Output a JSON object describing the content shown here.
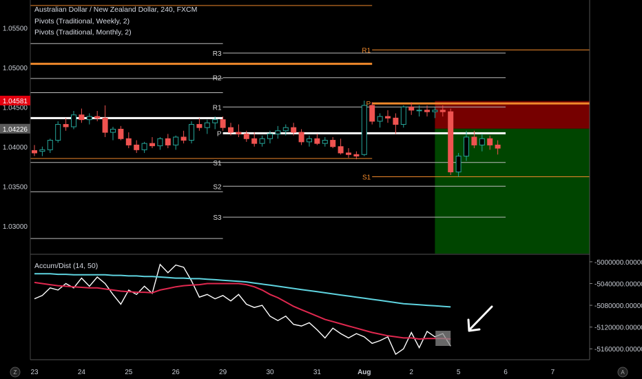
{
  "header": {
    "title": "Australian Dollar / New Zealand Dollar, 240, FXCM",
    "pivots_weekly": "Pivots (Traditional, Weekly, 2)",
    "pivots_monthly": "Pivots (Traditional, Monthly, 2)"
  },
  "indicator": {
    "title": "Accum/Dist (14, 50)"
  },
  "colors": {
    "background": "#000000",
    "up_candle": "#26a69a",
    "down_candle": "#ef5350",
    "pivot_weekly": "#ffffff",
    "pivot_monthly": "#f0892b",
    "ad_line": "#ffffff",
    "ma_fast": "#e0284f",
    "ma_slow": "#5fd4e0",
    "stop_zone": "#8b0000",
    "target_zone": "#004d00",
    "price_badge_red": "#e2000f",
    "price_badge_grey": "#5b5b5b"
  },
  "chart_data": [
    {
      "type": "candlestick",
      "title": "Australian Dollar / New Zealand Dollar, 240, FXCM",
      "y_axis": {
        "ticks": [
          "1.05500",
          "1.05000",
          "1.04500",
          "1.04000",
          "1.03500",
          "1.03000"
        ],
        "tick_values": [
          1.055,
          1.05,
          1.045,
          1.04,
          1.035,
          1.03
        ],
        "ylim": [
          1.0265,
          1.0585
        ],
        "badges": [
          {
            "label": "1.04581",
            "value": 1.04581,
            "color": "#e2000f"
          },
          {
            "label": "1.04226",
            "value": 1.04226,
            "color": "#5b5b5b"
          }
        ]
      },
      "x_axis": {
        "ticks": [
          "23",
          "24",
          "25",
          "26",
          "29",
          "30",
          "31",
          "Aug",
          "2",
          "5",
          "6",
          "7"
        ],
        "tick_positions": [
          0,
          6,
          12,
          18,
          24,
          30,
          36,
          42,
          48,
          54,
          60,
          66
        ]
      },
      "candles": [
        {
          "o": 1.0395,
          "h": 1.0402,
          "l": 1.0388,
          "c": 1.0392
        },
        {
          "o": 1.0394,
          "h": 1.04,
          "l": 1.0388,
          "c": 1.0396
        },
        {
          "o": 1.0396,
          "h": 1.041,
          "l": 1.0392,
          "c": 1.0408
        },
        {
          "o": 1.0408,
          "h": 1.0432,
          "l": 1.0405,
          "c": 1.0428
        },
        {
          "o": 1.0428,
          "h": 1.0436,
          "l": 1.042,
          "c": 1.0425
        },
        {
          "o": 1.0425,
          "h": 1.0445,
          "l": 1.0422,
          "c": 1.044
        },
        {
          "o": 1.044,
          "h": 1.0448,
          "l": 1.043,
          "c": 1.0434
        },
        {
          "o": 1.0434,
          "h": 1.0442,
          "l": 1.0428,
          "c": 1.0438
        },
        {
          "o": 1.0438,
          "h": 1.0445,
          "l": 1.0432,
          "c": 1.0436
        },
        {
          "o": 1.0436,
          "h": 1.0452,
          "l": 1.0412,
          "c": 1.0418
        },
        {
          "o": 1.0418,
          "h": 1.0425,
          "l": 1.0408,
          "c": 1.0422
        },
        {
          "o": 1.0422,
          "h": 1.0426,
          "l": 1.0408,
          "c": 1.041
        },
        {
          "o": 1.041,
          "h": 1.0418,
          "l": 1.0398,
          "c": 1.0402
        },
        {
          "o": 1.0402,
          "h": 1.0408,
          "l": 1.0392,
          "c": 1.0396
        },
        {
          "o": 1.0396,
          "h": 1.0406,
          "l": 1.0392,
          "c": 1.0404
        },
        {
          "o": 1.0404,
          "h": 1.0412,
          "l": 1.0398,
          "c": 1.0401
        },
        {
          "o": 1.0401,
          "h": 1.0412,
          "l": 1.0396,
          "c": 1.041
        },
        {
          "o": 1.041,
          "h": 1.0416,
          "l": 1.0398,
          "c": 1.0402
        },
        {
          "o": 1.0402,
          "h": 1.0414,
          "l": 1.0396,
          "c": 1.0412
        },
        {
          "o": 1.0412,
          "h": 1.042,
          "l": 1.0404,
          "c": 1.0408
        },
        {
          "o": 1.0408,
          "h": 1.0432,
          "l": 1.0404,
          "c": 1.0428
        },
        {
          "o": 1.0428,
          "h": 1.0436,
          "l": 1.042,
          "c": 1.0424
        },
        {
          "o": 1.0424,
          "h": 1.0434,
          "l": 1.0416,
          "c": 1.043
        },
        {
          "o": 1.043,
          "h": 1.0438,
          "l": 1.0422,
          "c": 1.0434
        },
        {
          "o": 1.0434,
          "h": 1.0438,
          "l": 1.042,
          "c": 1.0424
        },
        {
          "o": 1.0424,
          "h": 1.043,
          "l": 1.0414,
          "c": 1.0418
        },
        {
          "o": 1.0418,
          "h": 1.0428,
          "l": 1.0412,
          "c": 1.0416
        },
        {
          "o": 1.0416,
          "h": 1.042,
          "l": 1.0406,
          "c": 1.041
        },
        {
          "o": 1.041,
          "h": 1.0418,
          "l": 1.04,
          "c": 1.0404
        },
        {
          "o": 1.0404,
          "h": 1.0414,
          "l": 1.04,
          "c": 1.041
        },
        {
          "o": 1.041,
          "h": 1.042,
          "l": 1.0404,
          "c": 1.0416
        },
        {
          "o": 1.0416,
          "h": 1.0426,
          "l": 1.041,
          "c": 1.042
        },
        {
          "o": 1.042,
          "h": 1.0428,
          "l": 1.0414,
          "c": 1.0424
        },
        {
          "o": 1.0424,
          "h": 1.043,
          "l": 1.0414,
          "c": 1.0418
        },
        {
          "o": 1.0418,
          "h": 1.0422,
          "l": 1.0402,
          "c": 1.0406
        },
        {
          "o": 1.0406,
          "h": 1.0414,
          "l": 1.04,
          "c": 1.041
        },
        {
          "o": 1.041,
          "h": 1.0416,
          "l": 1.0402,
          "c": 1.0404
        },
        {
          "o": 1.0404,
          "h": 1.0412,
          "l": 1.04,
          "c": 1.0408
        },
        {
          "o": 1.0408,
          "h": 1.0412,
          "l": 1.0398,
          "c": 1.04
        },
        {
          "o": 1.04,
          "h": 1.041,
          "l": 1.039,
          "c": 1.0392
        },
        {
          "o": 1.0392,
          "h": 1.0398,
          "l": 1.0386,
          "c": 1.039
        },
        {
          "o": 1.039,
          "h": 1.0394,
          "l": 1.0384,
          "c": 1.0388
        },
        {
          "o": 1.039,
          "h": 1.0458,
          "l": 1.0388,
          "c": 1.0452
        },
        {
          "o": 1.0452,
          "h": 1.0456,
          "l": 1.0428,
          "c": 1.0432
        },
        {
          "o": 1.0432,
          "h": 1.0442,
          "l": 1.0424,
          "c": 1.0438
        },
        {
          "o": 1.0438,
          "h": 1.0446,
          "l": 1.043,
          "c": 1.0436
        },
        {
          "o": 1.0436,
          "h": 1.0442,
          "l": 1.0416,
          "c": 1.0428
        },
        {
          "o": 1.0428,
          "h": 1.0452,
          "l": 1.0424,
          "c": 1.045
        },
        {
          "o": 1.045,
          "h": 1.0456,
          "l": 1.044,
          "c": 1.0446
        },
        {
          "o": 1.0446,
          "h": 1.0452,
          "l": 1.0438,
          "c": 1.0446
        },
        {
          "o": 1.0446,
          "h": 1.0452,
          "l": 1.0438,
          "c": 1.0444
        },
        {
          "o": 1.0444,
          "h": 1.045,
          "l": 1.0436,
          "c": 1.0446
        },
        {
          "o": 1.0446,
          "h": 1.0452,
          "l": 1.0438,
          "c": 1.0444
        },
        {
          "o": 1.0444,
          "h": 1.0448,
          "l": 1.0364,
          "c": 1.0368
        },
        {
          "o": 1.0368,
          "h": 1.0392,
          "l": 1.0362,
          "c": 1.0388
        },
        {
          "o": 1.0388,
          "h": 1.042,
          "l": 1.0382,
          "c": 1.0412
        },
        {
          "o": 1.0412,
          "h": 1.042,
          "l": 1.0398,
          "c": 1.0402
        },
        {
          "o": 1.0402,
          "h": 1.0416,
          "l": 1.0394,
          "c": 1.041
        },
        {
          "o": 1.041,
          "h": 1.0414,
          "l": 1.0396,
          "c": 1.0402
        },
        {
          "o": 1.0402,
          "h": 1.0408,
          "l": 1.039,
          "c": 1.0398
        }
      ],
      "pivots": {
        "weekly_1": {
          "from": -6,
          "to": 24,
          "P": 1.0436,
          "R1": 1.0468,
          "R2": 1.0486,
          "R3": 1.053,
          "S1": 1.038,
          "S2": 1.0343,
          "S3": 1.0284
        },
        "weekly_2": {
          "from": 24,
          "to": 60,
          "P": 1.04168,
          "R1": 1.045,
          "R2": 1.0487,
          "R3": 1.0518,
          "S1": 1.038,
          "S2": 1.035,
          "S3": 1.0311
        },
        "monthly_1": {
          "from": -6,
          "to": 43,
          "P": 1.05045,
          "R1": 1.0578,
          "S1": 1.0385
        },
        "monthly_2": {
          "from": 43,
          "to": 72,
          "P": 1.04545,
          "R1": 1.0522,
          "S1": 1.0362
        },
        "labels_weekly": [
          "R3",
          "R2",
          "R1",
          "P",
          "S1",
          "S2",
          "S3"
        ],
        "labels_monthly": [
          "R1",
          "P",
          "S1"
        ]
      },
      "position_zones": {
        "from": 51,
        "to": 72,
        "stop_top": 1.04575,
        "entry": 1.04226,
        "target_bottom": 1.0265
      }
    },
    {
      "type": "line",
      "title": "Accum/Dist (14, 50)",
      "y_axis": {
        "ticks": [
          "-5000000.00000",
          "-5040000.00000",
          "-5080000.00000",
          "-5120000.00000",
          "-5160000.00000"
        ],
        "tick_values": [
          -5000000,
          -5040000,
          -5080000,
          -5120000,
          -5160000
        ],
        "ylim": [
          -5180000,
          -4990000
        ]
      },
      "series": [
        {
          "name": "",
          "role": "ad",
          "x_from": 0,
          "values": [
            -5068000,
            -5062000,
            -5048000,
            -5052000,
            -5040000,
            -5048000,
            -5030000,
            -5045000,
            -5028000,
            -5040000,
            -5060000,
            -5078000,
            -5052000,
            -5060000,
            -5045000,
            -5058000,
            -5005000,
            -5020000,
            -5006000,
            -5010000,
            -5035000,
            -5065000,
            -5060000,
            -5068000,
            -5062000,
            -5072000,
            -5060000,
            -5078000,
            -5084000,
            -5080000,
            -5100000,
            -5108000,
            -5100000,
            -5115000,
            -5118000,
            -5112000,
            -5125000,
            -5140000,
            -5122000,
            -5132000,
            -5140000,
            -5132000,
            -5138000,
            -5150000,
            -5145000,
            -5138000,
            -5170000,
            -5160000,
            -5130000,
            -5158000,
            -5128000,
            -5138000,
            -5132000,
            -5155000
          ]
        },
        {
          "name": "",
          "role": "ma_fast",
          "x_from": 0,
          "values": [
            -5038000,
            -5040000,
            -5042000,
            -5044000,
            -5045000,
            -5046000,
            -5047000,
            -5048000,
            -5048000,
            -5050000,
            -5052000,
            -5054000,
            -5055000,
            -5056000,
            -5056000,
            -5057000,
            -5052000,
            -5049000,
            -5046000,
            -5044000,
            -5043000,
            -5042000,
            -5040000,
            -5040000,
            -5040000,
            -5040000,
            -5040000,
            -5042000,
            -5046000,
            -5052000,
            -5060000,
            -5066000,
            -5074000,
            -5082000,
            -5088000,
            -5094000,
            -5100000,
            -5106000,
            -5110000,
            -5114000,
            -5118000,
            -5122000,
            -5126000,
            -5130000,
            -5133000,
            -5136000,
            -5138000,
            -5140000,
            -5140000,
            -5142000,
            -5141000,
            -5141000,
            -5141000,
            -5142000
          ]
        },
        {
          "name": "",
          "role": "ma_slow",
          "x_from": 0,
          "values": [
            -5022000,
            -5022000,
            -5022000,
            -5023000,
            -5023000,
            -5024000,
            -5024000,
            -5024000,
            -5024000,
            -5024000,
            -5025000,
            -5025000,
            -5026000,
            -5026000,
            -5027000,
            -5027000,
            -5028000,
            -5029000,
            -5030000,
            -5030000,
            -5031000,
            -5031000,
            -5032000,
            -5033000,
            -5034000,
            -5035000,
            -5036000,
            -5037000,
            -5039000,
            -5041000,
            -5043000,
            -5045000,
            -5047000,
            -5049000,
            -5051000,
            -5053000,
            -5055000,
            -5057000,
            -5059000,
            -5061000,
            -5063000,
            -5065000,
            -5067000,
            -5069000,
            -5071000,
            -5073000,
            -5075000,
            -5077000,
            -5078000,
            -5079000,
            -5080000,
            -5081000,
            -5082000,
            -5083000
          ]
        }
      ]
    }
  ],
  "footer": {
    "left_icon": "Z",
    "right_icon": "A"
  }
}
